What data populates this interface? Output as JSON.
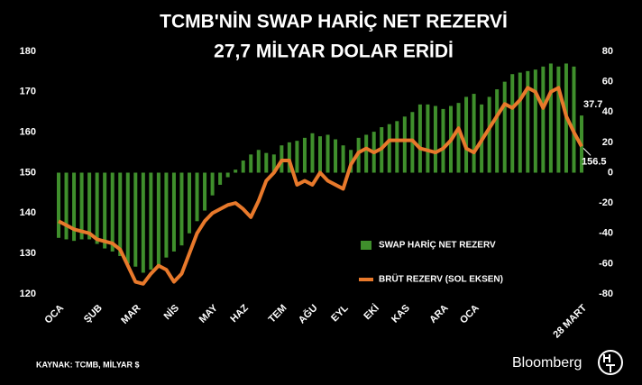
{
  "chart_data": {
    "type": "bar_line",
    "title": "TCMB'NİN SWAP HARİÇ NET REZERVİ",
    "subtitle": "27,7 MİLYAR DOLAR ERİDİ",
    "source": "KAYNAK: TCMB, MİLYAR $",
    "brand": "Bloomberg",
    "categories": [
      "OCA",
      null,
      null,
      null,
      null,
      "ŞUB",
      null,
      null,
      null,
      null,
      "MAR",
      null,
      null,
      null,
      null,
      "NİS",
      null,
      null,
      null,
      null,
      "MAY",
      null,
      null,
      null,
      "HAZ",
      null,
      null,
      null,
      null,
      "TEM",
      null,
      null,
      null,
      "AĞU",
      null,
      null,
      null,
      "EYL",
      null,
      null,
      null,
      "EKİ",
      null,
      null,
      null,
      "KAS",
      null,
      null,
      null,
      null,
      "ARA",
      null,
      null,
      null,
      "OCA",
      null,
      null,
      null,
      null,
      null,
      null,
      null,
      null,
      null,
      null,
      null,
      null,
      null,
      "28 MART"
    ],
    "series": [
      {
        "name": "SWAP HARİÇ NET REZERV",
        "type": "bar",
        "axis": "y2",
        "color": "#3f8f2c",
        "values": [
          -43,
          -44,
          -45,
          -44,
          -44,
          -47,
          -50,
          -52,
          -55,
          -60,
          -62,
          -66,
          -64,
          -62,
          -56,
          -52,
          -48,
          -40,
          -32,
          -25,
          -15,
          -8,
          -3,
          2,
          8,
          12,
          15,
          13,
          12,
          18,
          20,
          21,
          23,
          26,
          24,
          25,
          22,
          18,
          15,
          23,
          25,
          27,
          30,
          32,
          34,
          37,
          40,
          45,
          45,
          44,
          42,
          44,
          46,
          50,
          52,
          45,
          50,
          55,
          60,
          65,
          66,
          67,
          68,
          70,
          72,
          70,
          72,
          70,
          37.7
        ]
      },
      {
        "name": "BRÜT REZERV (SOL EKSEN)",
        "type": "line",
        "color": "#e8792b",
        "values": [
          138,
          137,
          136,
          135.5,
          135,
          133.5,
          133,
          132.5,
          131,
          127,
          123,
          122.5,
          125,
          127,
          126,
          123,
          125,
          130,
          135,
          138,
          140,
          141,
          142,
          142.5,
          141,
          139,
          143,
          148,
          150,
          153,
          153,
          147,
          148,
          147,
          150,
          148,
          147,
          146,
          152,
          155,
          156,
          155,
          156,
          158,
          158,
          158,
          158,
          156,
          155.5,
          155,
          156,
          158,
          161,
          156,
          155,
          158,
          161,
          164,
          167,
          166,
          168,
          171,
          170,
          166,
          170,
          171,
          164,
          160,
          156.5
        ]
      }
    ],
    "ylim": [
      120,
      180
    ],
    "yticks": [
      120,
      130,
      140,
      150,
      160,
      170,
      180
    ],
    "y2lim": [
      -80,
      80
    ],
    "y2ticks": [
      -80,
      -60,
      -40,
      -20,
      0,
      20,
      40,
      60,
      80
    ],
    "legend": "right"
  }
}
